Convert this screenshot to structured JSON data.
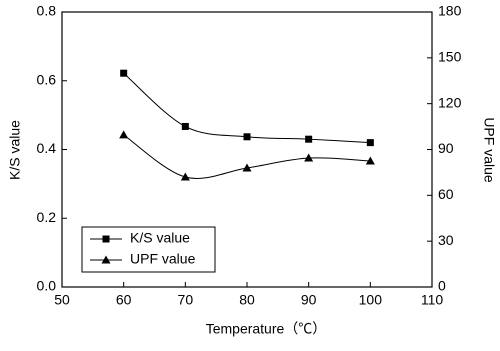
{
  "chart_data": {
    "type": "line",
    "x": [
      60,
      70,
      80,
      90,
      100
    ],
    "series": [
      {
        "name": "K/S value",
        "color": "#000000",
        "marker": "square",
        "values": [
          0.622,
          0.467,
          0.437,
          0.43,
          0.42
        ]
      },
      {
        "name": "UPF value",
        "color": "#000000",
        "marker": "triangle",
        "axis": "y2",
        "values": [
          99.6,
          72,
          77.9,
          84.4,
          82.5
        ]
      }
    ],
    "xlabel": "Temperature（℃）",
    "ylabel": "K/S value",
    "y2label": "UPF value",
    "xlim": [
      50,
      110
    ],
    "xticks": [
      50,
      60,
      70,
      80,
      90,
      100,
      110
    ],
    "ylim": [
      0,
      0.8
    ],
    "yticks": [
      {
        "value": 0,
        "label": "0.0"
      },
      0.2,
      0.4,
      0.6,
      0.8
    ],
    "y2lim": [
      0,
      180
    ],
    "y2ticks": [
      0,
      30,
      60,
      90,
      120,
      150,
      180
    ],
    "legend": "lower left",
    "grid": false
  }
}
